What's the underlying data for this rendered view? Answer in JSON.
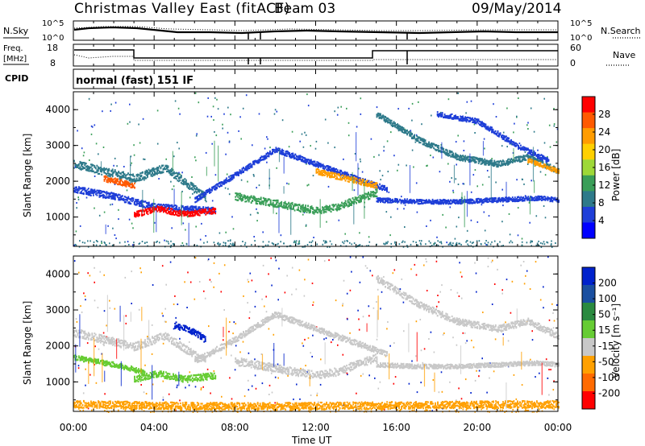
{
  "header": {
    "title": "Christmas Valley East (fitACF)",
    "beam": "Beam 03",
    "date": "09/May/2014"
  },
  "top_panels": {
    "nsky_label": "N.Sky",
    "nsearch_label": "N.Search",
    "nsky_ticks": [
      "10^5",
      "10^0"
    ],
    "freq_label": "Freq.",
    "freq_unit": "[MHz]",
    "freq_ticks": [
      "18",
      "8"
    ],
    "nave_label": "Nave",
    "nave_ticks": [
      "60",
      "0"
    ],
    "cpid_label": "CPID",
    "cpid_value": "normal (fast) 151 IF"
  },
  "x_axis": {
    "label": "Time UT",
    "ticks": [
      "00:00",
      "04:00",
      "08:00",
      "12:00",
      "16:00",
      "20:00",
      "00:00"
    ],
    "range_hours": [
      0,
      24
    ]
  },
  "power_colorbar": {
    "label": "Power [dB]",
    "ticks": [
      "28",
      "24",
      "20",
      "16",
      "12",
      "8",
      "4"
    ],
    "colors": [
      "#ff0000",
      "#ff5a00",
      "#ff9c00",
      "#ffd000",
      "#9ed838",
      "#3a9e58",
      "#2e7a8a",
      "#1f3fd8",
      "#0000ff"
    ]
  },
  "velocity_colorbar": {
    "label": "Velocity [m s⁻¹]",
    "ticks": [
      "200",
      "100",
      "50",
      "15",
      "-15",
      "-50",
      "-100",
      "-200"
    ],
    "colors": [
      "#0022cc",
      "#1a4fa0",
      "#2a8a40",
      "#66cc33",
      "#c8c8c8",
      "#ffa000",
      "#ff6a00",
      "#ff0000"
    ]
  },
  "range_axis": {
    "label": "Slant Range [km]",
    "ticks": [
      "1000",
      "2000",
      "3000",
      "4000"
    ],
    "range_km": [
      180,
      4500
    ]
  },
  "chart_data": [
    {
      "type": "heatmap",
      "title": "",
      "quantity": "Power",
      "xlabel": "Time UT",
      "ylabel": "Slant Range [km]",
      "xlim": [
        0,
        24
      ],
      "ylim": [
        180,
        4500
      ],
      "scatter_bands": [
        {
          "t": [
            0,
            1.5,
            3,
            4.5,
            6.5
          ],
          "r": [
            2500,
            2300,
            2100,
            2400,
            1600
          ],
          "width": 220,
          "color": "#2e7a8a"
        },
        {
          "t": [
            1.5,
            3
          ],
          "r": [
            2100,
            1900
          ],
          "width": 160,
          "color": "#ff5a00"
        },
        {
          "t": [
            0,
            2,
            4,
            5.5,
            7
          ],
          "r": [
            1800,
            1600,
            1300,
            1250,
            1200
          ],
          "width": 180,
          "color": "#1f3fd8"
        },
        {
          "t": [
            3,
            4.2,
            5.5,
            7
          ],
          "r": [
            1100,
            1250,
            1100,
            1200
          ],
          "width": 160,
          "color": "#ff0000"
        },
        {
          "t": [
            6,
            8,
            10,
            12,
            14,
            15.5
          ],
          "r": [
            1500,
            2200,
            2900,
            2500,
            2100,
            1800
          ],
          "width": 140,
          "color": "#1f3fd8"
        },
        {
          "t": [
            8,
            10,
            12,
            13,
            15
          ],
          "r": [
            1600,
            1400,
            1200,
            1300,
            1700
          ],
          "width": 200,
          "color": "#3a9e58"
        },
        {
          "t": [
            12,
            13.5,
            15
          ],
          "r": [
            2300,
            2100,
            1900
          ],
          "width": 160,
          "color": "#ff9c00"
        },
        {
          "t": [
            15,
            17,
            19,
            21,
            23,
            24
          ],
          "r": [
            1500,
            1450,
            1450,
            1500,
            1550,
            1500
          ],
          "width": 120,
          "color": "#1f3fd8"
        },
        {
          "t": [
            15,
            17,
            19,
            21,
            22.5,
            24
          ],
          "r": [
            3900,
            3200,
            2700,
            2500,
            2700,
            2300
          ],
          "width": 160,
          "color": "#2e7a8a"
        },
        {
          "t": [
            18,
            20,
            22,
            23.5
          ],
          "r": [
            3900,
            3700,
            3000,
            2600
          ],
          "width": 140,
          "color": "#1f3fd8"
        },
        {
          "t": [
            22.5,
            23.5,
            24
          ],
          "r": [
            2600,
            2400,
            2300
          ],
          "width": 120,
          "color": "#ff9c00"
        }
      ]
    },
    {
      "type": "heatmap",
      "title": "",
      "quantity": "Velocity",
      "xlabel": "Time UT",
      "ylabel": "Slant Range [km]",
      "xlim": [
        0,
        24
      ],
      "ylim": [
        180,
        4500
      ],
      "scatter_bands": [
        {
          "t": [
            0,
            1.5,
            3,
            4.5,
            6.5
          ],
          "r": [
            2400,
            2200,
            2000,
            2300,
            1600
          ],
          "width": 220,
          "color": "#c8c8c8"
        },
        {
          "t": [
            0,
            2,
            3.5
          ],
          "r": [
            1700,
            1500,
            1300
          ],
          "width": 140,
          "color": "#66cc33"
        },
        {
          "t": [
            3,
            4.2,
            5.5,
            7
          ],
          "r": [
            1100,
            1250,
            1100,
            1200
          ],
          "width": 180,
          "color": "#66cc33"
        },
        {
          "t": [
            5,
            6,
            6.5
          ],
          "r": [
            2600,
            2400,
            2200
          ],
          "width": 180,
          "color": "#0022cc"
        },
        {
          "t": [
            6,
            8,
            10,
            12,
            14,
            15.5
          ],
          "r": [
            1600,
            2200,
            2900,
            2500,
            2100,
            1800
          ],
          "width": 160,
          "color": "#c8c8c8"
        },
        {
          "t": [
            8,
            10,
            12,
            13,
            15
          ],
          "r": [
            1600,
            1400,
            1200,
            1300,
            1700
          ],
          "width": 220,
          "color": "#c8c8c8"
        },
        {
          "t": [
            15,
            17,
            19,
            21,
            23,
            24
          ],
          "r": [
            1500,
            1450,
            1450,
            1500,
            1550,
            1500
          ],
          "width": 120,
          "color": "#c8c8c8"
        },
        {
          "t": [
            15,
            17,
            19,
            21,
            22.5,
            24
          ],
          "r": [
            3900,
            3200,
            2700,
            2500,
            2700,
            2300
          ],
          "width": 180,
          "color": "#c8c8c8"
        },
        {
          "t": [
            0,
            6,
            12,
            18,
            24
          ],
          "r": [
            400,
            350,
            350,
            380,
            400
          ],
          "width": 200,
          "color": "#ffa000"
        }
      ]
    }
  ]
}
